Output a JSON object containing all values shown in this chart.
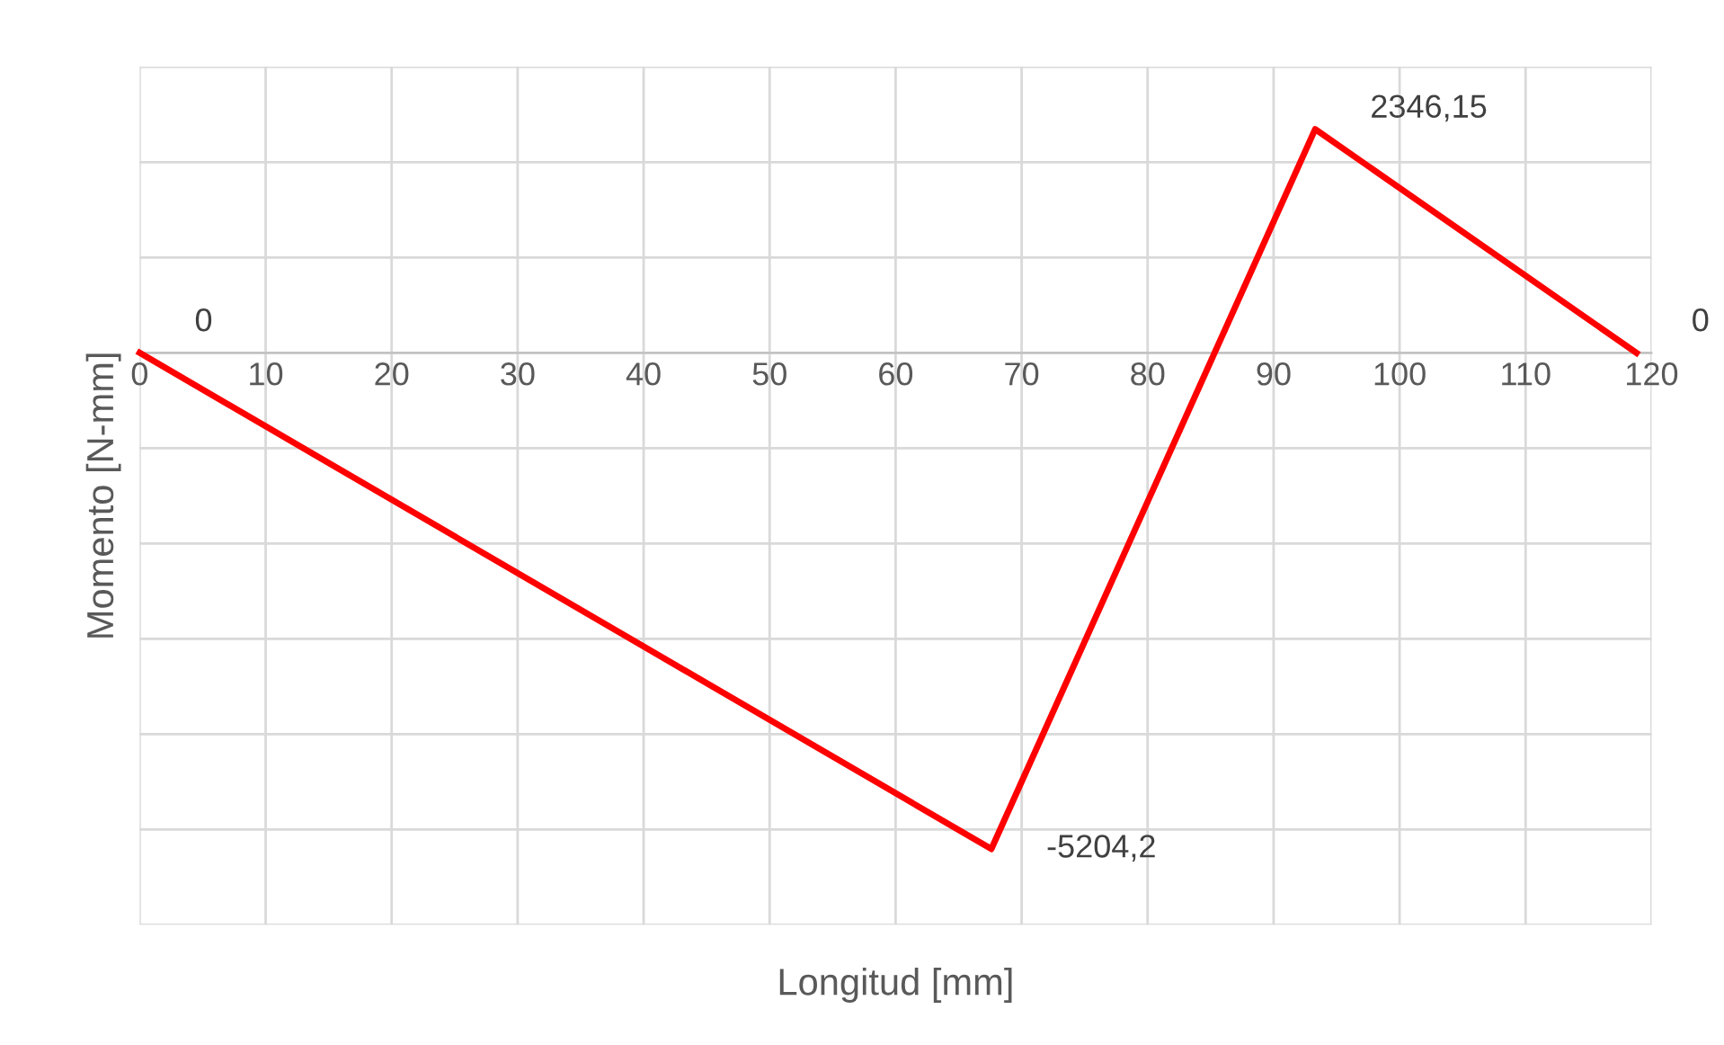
{
  "chart_data": {
    "type": "line",
    "xlabel": "Longitud [mm]",
    "ylabel": "Momento [N-mm]",
    "x": [
      0,
      67.6,
      93.3,
      118.8
    ],
    "series": [
      {
        "color": "#ff0000",
        "values": [
          0,
          -5204.2,
          2346.15,
          0
        ],
        "value_labels": [
          "0",
          "-5204,2",
          "2346,15",
          "0"
        ]
      }
    ],
    "xlim": [
      0,
      120
    ],
    "xticks": [
      0,
      10,
      20,
      30,
      40,
      50,
      60,
      70,
      80,
      90,
      100,
      110,
      120
    ],
    "ylim": [
      -6000,
      3000
    ],
    "yticks": [
      {
        "value": -6000,
        "label": null
      },
      {
        "value": -5000,
        "label": null
      },
      {
        "value": -4000,
        "label": null
      },
      {
        "value": -3000,
        "label": null
      },
      {
        "value": -2000,
        "label": null
      },
      {
        "value": -1000,
        "label": null
      },
      {
        "value": 0,
        "label": null
      },
      {
        "value": 1000,
        "label": null
      },
      {
        "value": 2000,
        "label": null
      },
      {
        "value": 3000,
        "label": null
      }
    ],
    "tick_labels": "x",
    "grid": true,
    "legend": false,
    "marker": "none",
    "line_style": "solid"
  }
}
